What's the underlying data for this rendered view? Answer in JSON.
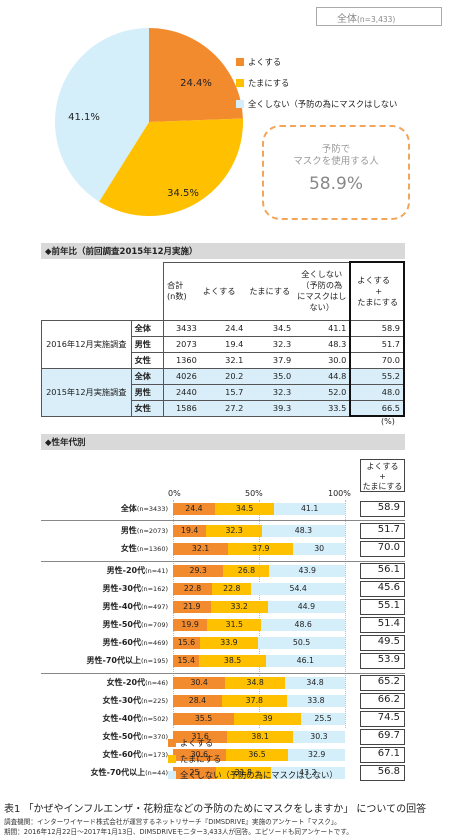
{
  "total_label": "全体",
  "total_n": "(n=3,433)",
  "chart_data": [
    {
      "type": "pie",
      "labels": [
        "よくする",
        "たまにする",
        "全くしない（予防の為にマスクはしない"
      ],
      "values": [
        24.4,
        34.5,
        41.1
      ],
      "value_labels": [
        "24.4%",
        "34.5%",
        "41.1%"
      ],
      "colors": [
        "#f28a2e",
        "#ffc000",
        "#d4eefa"
      ]
    },
    {
      "type": "bar",
      "stacked": true,
      "xlim": [
        0,
        100
      ],
      "ticks": [
        "0%",
        "50%",
        "100%"
      ],
      "series_names": [
        "よくする",
        "たまにする",
        "全くしない（予防の為にマスクはしない）"
      ],
      "rows": [
        {
          "label": "全体",
          "n": "(n=3433)",
          "values": [
            24.4,
            34.5,
            41.1
          ],
          "ex": "58.9"
        },
        {
          "label": "男性",
          "n": "(n=2073)",
          "values": [
            19.4,
            32.3,
            48.3
          ],
          "ex": "51.7"
        },
        {
          "label": "女性",
          "n": "(n=1360)",
          "values": [
            32.1,
            37.9,
            30
          ],
          "ex": "70.0"
        },
        {
          "label": "男性-20代",
          "n": "(n=41)",
          "values": [
            29.3,
            26.8,
            43.9
          ],
          "ex": "56.1"
        },
        {
          "label": "男性-30代",
          "n": "(n=162)",
          "values": [
            22.8,
            22.8,
            54.4
          ],
          "ex": "45.6"
        },
        {
          "label": "男性-40代",
          "n": "(n=497)",
          "values": [
            21.9,
            33.2,
            44.9
          ],
          "ex": "55.1"
        },
        {
          "label": "男性-50代",
          "n": "(n=709)",
          "values": [
            19.9,
            31.5,
            48.6
          ],
          "ex": "51.4"
        },
        {
          "label": "男性-60代",
          "n": "(n=469)",
          "values": [
            15.6,
            33.9,
            50.5
          ],
          "ex": "49.5"
        },
        {
          "label": "男性-70代以上",
          "n": "(n=195)",
          "values": [
            15.4,
            38.5,
            46.1
          ],
          "ex": "53.9"
        },
        {
          "label": "女性-20代",
          "n": "(n=46)",
          "values": [
            30.4,
            34.8,
            34.8
          ],
          "ex": "65.2"
        },
        {
          "label": "女性-30代",
          "n": "(n=225)",
          "values": [
            28.4,
            37.8,
            33.8
          ],
          "ex": "66.2"
        },
        {
          "label": "女性-40代",
          "n": "(n=502)",
          "values": [
            35.5,
            39,
            25.5
          ],
          "ex": "74.5"
        },
        {
          "label": "女性-50代",
          "n": "(n=370)",
          "values": [
            31.6,
            38.1,
            30.3
          ],
          "ex": "69.7"
        },
        {
          "label": "女性-60代",
          "n": "(n=173)",
          "values": [
            30.6,
            36.5,
            32.9
          ],
          "ex": "67.1"
        },
        {
          "label": "女性-70代以上",
          "n": "(n=44)",
          "values": [
            25,
            31.8,
            43.2
          ],
          "ex": "56.8"
        }
      ],
      "ex_header_l1": "よくする",
      "ex_header_l2": "+",
      "ex_header_l3": "たまにする"
    }
  ],
  "callout": {
    "line1": "予防で",
    "line2": "マスクを使用する人",
    "value": "58.9%"
  },
  "yoy": {
    "title": "◆前年比（前回調査2015年12月実施）",
    "headers": {
      "total_l1": "合計",
      "total_l2": "(n数)",
      "often": "よくする",
      "sometimes": "たまにする",
      "never_l1": "全くしない",
      "never_l2": "（予防の為",
      "never_l3": "にマスクはし",
      "never_l4": "ない）",
      "ex_l1": "よくする",
      "ex_l2": "+",
      "ex_l3": "たまにする"
    },
    "group1": "2016年12月実施調査",
    "group2": "2015年12月実施調査",
    "rows": [
      {
        "label": "全体",
        "n": "3433",
        "a": "24.4",
        "b": "34.5",
        "c": "41.1",
        "ex": "58.9"
      },
      {
        "label": "男性",
        "n": "2073",
        "a": "19.4",
        "b": "32.3",
        "c": "48.3",
        "ex": "51.7"
      },
      {
        "label": "女性",
        "n": "1360",
        "a": "32.1",
        "b": "37.9",
        "c": "30.0",
        "ex": "70.0"
      },
      {
        "label": "全体",
        "n": "4026",
        "a": "20.2",
        "b": "35.0",
        "c": "44.8",
        "ex": "55.2"
      },
      {
        "label": "男性",
        "n": "2440",
        "a": "15.7",
        "b": "32.3",
        "c": "52.0",
        "ex": "48.0"
      },
      {
        "label": "女性",
        "n": "1586",
        "a": "27.2",
        "b": "39.3",
        "c": "33.5",
        "ex": "66.5"
      }
    ],
    "unit": "(%)"
  },
  "age_title": "◆性年代別",
  "colors": {
    "often": "#f28a2e",
    "sometimes": "#ffc000",
    "never": "#d4eefa"
  },
  "caption": "表1 「かぜやインフルエンザ・花粉症などの予防のためにマスクをしますか」 についての回答",
  "footer1": "調査機関：インターワイヤード株式会社が運営するネットリサーチ『DIMSDRIVE』実施のアンケート「マスク」。",
  "footer2": "期間：2016年12月22日～2017年1月13日、DIMSDRIVEモニター3,433人が回答。エピソードも同アンケートです。"
}
